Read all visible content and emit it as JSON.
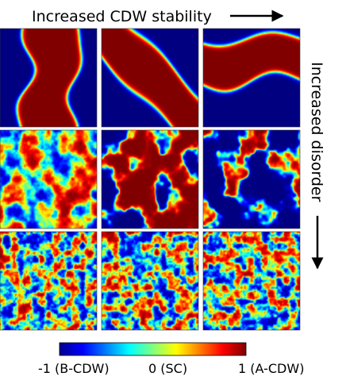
{
  "header": {
    "top_label": "Increased CDW stability"
  },
  "side": {
    "right_label": "Increased disorder"
  },
  "colorbar": {
    "min_label": "-1 (B-CDW)",
    "mid_label": "0 (SC)",
    "max_label": "1 (A-CDW)",
    "colors": [
      "#00008f",
      "#0000ff",
      "#007fff",
      "#00ffff",
      "#7fff7f",
      "#ffff00",
      "#ff7f00",
      "#ff0000",
      "#7f0000"
    ]
  },
  "grid": {
    "rows": 3,
    "cols": 3,
    "colors": {
      "a_cdw": "#a00000",
      "b_cdw": "#00008f"
    },
    "panels": [
      {
        "row": 1,
        "col": 1,
        "pattern": "vertical-band"
      },
      {
        "row": 1,
        "col": 2,
        "pattern": "diagonal-band"
      },
      {
        "row": 1,
        "col": 3,
        "pattern": "horizontal-band"
      },
      {
        "row": 2,
        "col": 1,
        "pattern": "fine-mixed-domains"
      },
      {
        "row": 2,
        "col": 2,
        "pattern": "large-red-domains"
      },
      {
        "row": 2,
        "col": 3,
        "pattern": "red-islands-in-blue"
      },
      {
        "row": 3,
        "col": 1,
        "pattern": "random-noise"
      },
      {
        "row": 3,
        "col": 2,
        "pattern": "random-noise"
      },
      {
        "row": 3,
        "col": 3,
        "pattern": "random-noise"
      }
    ]
  }
}
